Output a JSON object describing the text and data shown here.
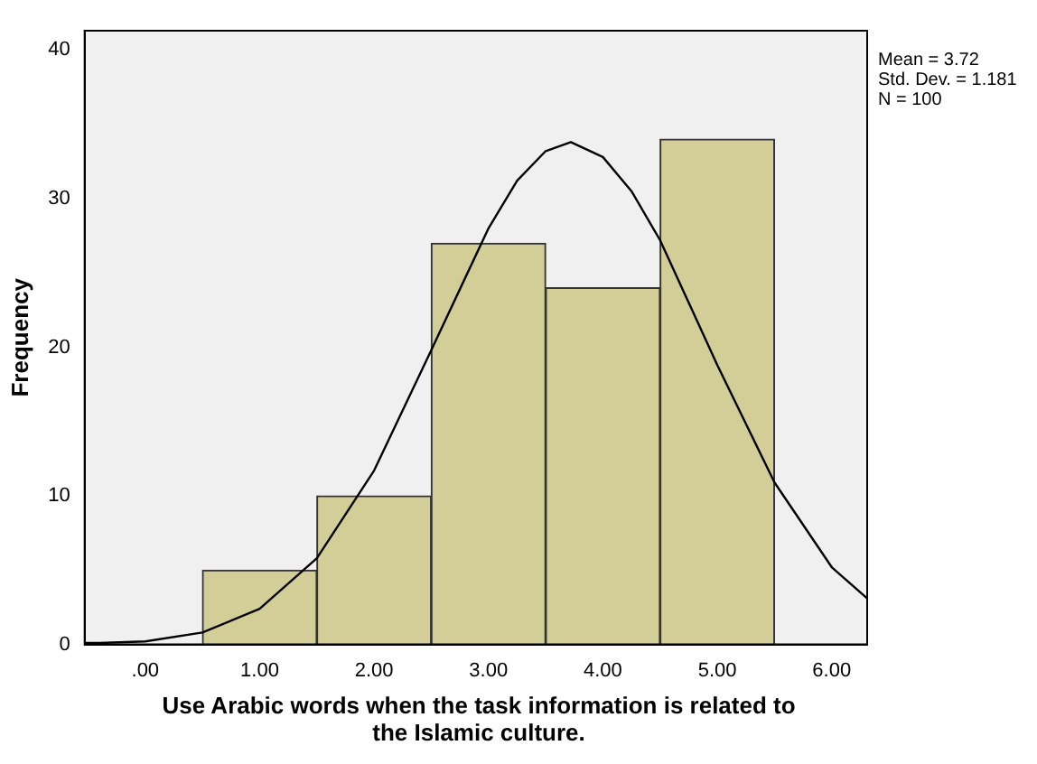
{
  "chart_data": {
    "type": "histogram",
    "xlabel": "Use Arabic words when the task information is related to the Islamic culture.",
    "ylabel": "Frequency",
    "annotations": [
      "Mean = 3.72",
      "Std. Dev. = 1.181",
      "N = 100"
    ],
    "series": [
      {
        "type": "histogram",
        "bins": [
          0.5,
          1.5,
          2.5,
          3.5,
          4.5,
          5.5
        ],
        "values": [
          5,
          10,
          27,
          24,
          34
        ],
        "color": "#d3ce97"
      },
      {
        "type": "line",
        "color": "#000000",
        "x": [
          -0.53,
          -0.4,
          0,
          0.5,
          1,
          1.5,
          2,
          2.5,
          3,
          3.25,
          3.5,
          3.72,
          4,
          4.25,
          4.5,
          5,
          5.5,
          6,
          6.31
        ],
        "values": [
          0.1,
          0.1,
          0.2,
          0.8,
          2.4,
          5.8,
          11.7,
          19.8,
          28,
          31.2,
          33.2,
          33.8,
          32.8,
          30.5,
          27.2,
          18.8,
          10.9,
          5.2,
          3.1
        ]
      }
    ],
    "xlim": [
      -0.53,
      6.31
    ],
    "xticks": [
      {
        "value": 0,
        "label": ".00"
      },
      {
        "value": 1,
        "label": "1.00"
      },
      {
        "value": 2,
        "label": "2.00"
      },
      {
        "value": 3,
        "label": "3.00"
      },
      {
        "value": 4,
        "label": "4.00"
      },
      {
        "value": 5,
        "label": "5.00"
      },
      {
        "value": 6,
        "label": "6.00"
      }
    ],
    "ylim": [
      0,
      41.3
    ],
    "yticks": [
      0,
      10,
      20,
      30,
      40
    ],
    "grid": false,
    "legend": false,
    "marker": "none",
    "line_style": "solid"
  }
}
